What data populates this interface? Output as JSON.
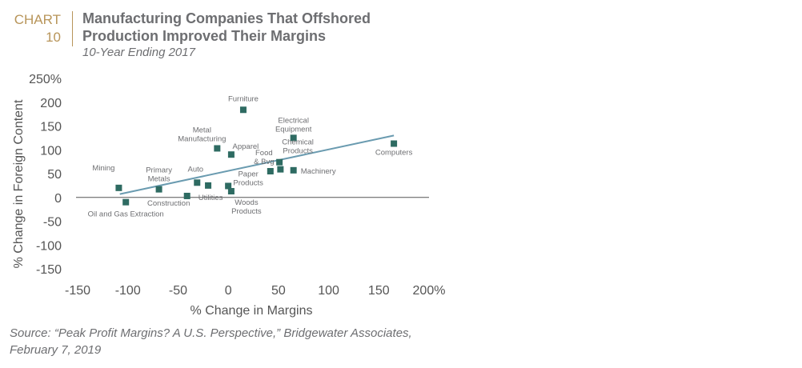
{
  "header": {
    "chart_word": "CHART",
    "chart_number": "10",
    "title_line1": "Manufacturing Companies That Offshored",
    "title_line2": "Production Improved Their Margins",
    "subtitle": "10-Year Ending 2017"
  },
  "source": {
    "line1": "Source: “Peak Profit Margins? A U.S. Perspective,” Bridgewater Associates,",
    "line2": "February 7, 2019"
  },
  "colors": {
    "marker": "#2e6b62",
    "trendline": "#6a9bb0",
    "accent": "#b8955a"
  },
  "chart_data": {
    "type": "scatter",
    "xlabel": "% Change in Margins",
    "ylabel": "% Change in Foreign Content",
    "xlim": [
      -150,
      200
    ],
    "ylim": [
      -150,
      250
    ],
    "xticks": [
      "-150",
      "-100",
      "-50",
      "0",
      "50",
      "100",
      "150",
      "200%"
    ],
    "yticks": [
      "250%",
      "200",
      "150",
      "100",
      "50",
      "0",
      "-50",
      "-100",
      "-150"
    ],
    "grid": false,
    "legend": "none",
    "points": [
      {
        "label": "Mining",
        "x": -109,
        "y": 20
      },
      {
        "label": "Oil and Gas Extraction",
        "x": -102,
        "y": -10
      },
      {
        "label": "Primary Metals",
        "x": -69,
        "y": 17
      },
      {
        "label": "Construction",
        "x": -41,
        "y": 3
      },
      {
        "label": "Auto",
        "x": -31,
        "y": 31
      },
      {
        "label": "Utilities",
        "x": -20,
        "y": 25
      },
      {
        "label": "Metal Manufacturing",
        "x": -11,
        "y": 103
      },
      {
        "label": "Paper Products",
        "x": 0,
        "y": 24
      },
      {
        "label": "Woods Products",
        "x": 3,
        "y": 13
      },
      {
        "label": "Apparel",
        "x": 3,
        "y": 90
      },
      {
        "label": "Furniture",
        "x": 15,
        "y": 184
      },
      {
        "label": "Food & Bvg",
        "x": 42,
        "y": 55
      },
      {
        "label": "Chemical Products",
        "x": 51,
        "y": 74
      },
      {
        "label": "",
        "x": 52,
        "y": 59
      },
      {
        "label": "Electrical Equipment",
        "x": 65,
        "y": 125
      },
      {
        "label": "Machinery",
        "x": 65,
        "y": 57
      },
      {
        "label": "Computers",
        "x": 165,
        "y": 113
      }
    ],
    "trendline": {
      "x1": -108,
      "y1": 7,
      "x2": 165,
      "y2": 130
    }
  }
}
